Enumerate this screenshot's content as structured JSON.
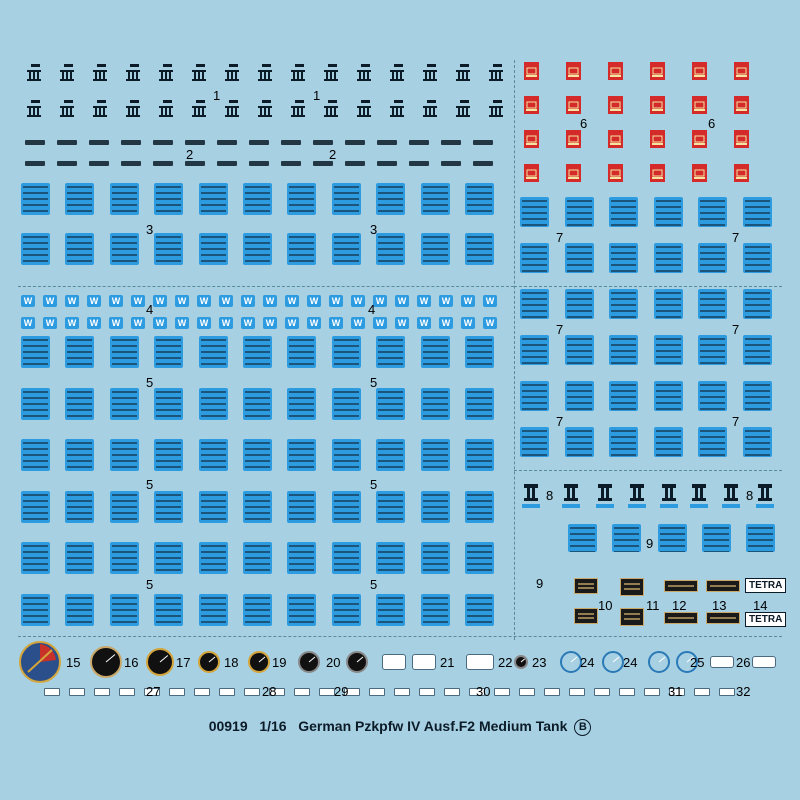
{
  "sheet": {
    "product_code": "00919",
    "scale": "1/16",
    "title": "German Pzkpfw IV Ausf.F2 Medium Tank",
    "sheet_letter": "B",
    "tetra_label": "TETRA",
    "w_letter": "W"
  },
  "decal_numbers": [
    "1",
    "2",
    "3",
    "4",
    "5",
    "6",
    "7",
    "8",
    "9",
    "10",
    "11",
    "12",
    "13",
    "14",
    "15",
    "16",
    "17",
    "18",
    "19",
    "20",
    "21",
    "22",
    "23",
    "24",
    "25",
    "26",
    "27",
    "28",
    "29",
    "30",
    "31",
    "32"
  ],
  "colors": {
    "background": "#a7d0e3",
    "decal_blue": "#2d9be0",
    "decal_red": "#d42a2a",
    "ink": "#0c1b28"
  }
}
